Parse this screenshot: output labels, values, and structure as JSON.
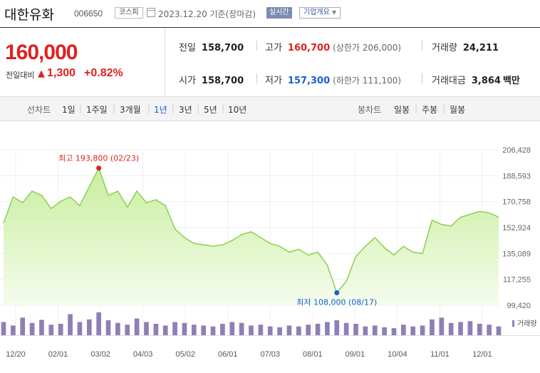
{
  "header": {
    "stock_name": "대한유화",
    "stock_code": "006650",
    "market": "코스피",
    "date": "2023.12.20  기준(장마감)",
    "realtime_label": "실시간",
    "company_button": "기업개요",
    "dropdown_arrow": "▼"
  },
  "quote": {
    "price": "160,000",
    "change_label": "전일대비",
    "change_arrow": "▲",
    "change_value": "1,300",
    "change_pct": "+0.82%",
    "colors": {
      "up": "#e02020",
      "down": "#1a5fd0"
    }
  },
  "stats": {
    "prev_label": "전일",
    "prev_value": "158,700",
    "high_label": "고가",
    "high_value": "160,700",
    "upper_limit": "(상한가 206,000)",
    "volume_label": "거래량",
    "volume_value": "24,211",
    "open_label": "시가",
    "open_value": "158,700",
    "low_label": "저가",
    "low_value": "157,300",
    "lower_limit": "(하한가 111,100)",
    "amount_label": "거래대금",
    "amount_value": "3,864",
    "amount_unit": "백만"
  },
  "period_bar": {
    "line_chart_label": "선차트",
    "line_periods": [
      "1일",
      "1주일",
      "3개월",
      "1년",
      "3년",
      "5년",
      "10년"
    ],
    "active_period": "1년",
    "candle_chart_label": "봉차트",
    "candle_periods": [
      "일봉",
      "주봉",
      "월봉"
    ]
  },
  "chart_data": {
    "type": "area",
    "x_labels": [
      "12/20",
      "02/01",
      "03/02",
      "04/03",
      "05/02",
      "06/01",
      "07/03",
      "08/01",
      "09/01",
      "10/04",
      "11/01",
      "12/01"
    ],
    "y_ticks": [
      "206,428",
      "188,593",
      "170,758",
      "152,924",
      "135,089",
      "117,255",
      "99,420"
    ],
    "ylim": [
      99420,
      206428
    ],
    "high_annotation": "최고 193,800 (02/23)",
    "low_annotation": "최저 108,000 (08/17)",
    "volume_legend": "거래량",
    "x": [
      "12/20",
      "12/27",
      "01/03",
      "01/10",
      "01/17",
      "01/24",
      "01/31",
      "02/07",
      "02/14",
      "02/21",
      "02/23",
      "03/02",
      "03/09",
      "03/16",
      "03/23",
      "03/30",
      "04/06",
      "04/13",
      "04/20",
      "04/27",
      "05/04",
      "05/11",
      "05/18",
      "05/25",
      "06/01",
      "06/08",
      "06/15",
      "06/22",
      "06/29",
      "07/06",
      "07/13",
      "07/20",
      "07/27",
      "08/03",
      "08/10",
      "08/17",
      "08/24",
      "08/31",
      "09/07",
      "09/14",
      "09/21",
      "10/04",
      "10/11",
      "10/18",
      "10/25",
      "11/01",
      "11/08",
      "11/15",
      "11/22",
      "11/29",
      "12/06",
      "12/13",
      "12/20"
    ],
    "values": [
      156000,
      174000,
      170000,
      178000,
      175000,
      166000,
      171000,
      174000,
      168000,
      181000,
      193800,
      175000,
      178000,
      167000,
      178000,
      170000,
      172000,
      168000,
      152000,
      146000,
      142000,
      141000,
      140000,
      141000,
      144000,
      148000,
      150000,
      146000,
      142000,
      140000,
      136000,
      138000,
      134000,
      136000,
      127000,
      108000,
      116000,
      133000,
      140000,
      146000,
      139000,
      134000,
      140000,
      136000,
      135000,
      158000,
      155000,
      154000,
      160000,
      162000,
      164000,
      163000,
      160000
    ],
    "volume": [
      30,
      22,
      40,
      28,
      35,
      24,
      26,
      48,
      30,
      36,
      52,
      34,
      28,
      24,
      38,
      30,
      26,
      22,
      30,
      28,
      24,
      22,
      20,
      26,
      30,
      28,
      22,
      24,
      20,
      18,
      22,
      20,
      24,
      26,
      30,
      34,
      28,
      26,
      20,
      22,
      18,
      16,
      24,
      20,
      22,
      36,
      40,
      28,
      30,
      32,
      26,
      24,
      20
    ],
    "colors": {
      "line": "#8ecf52",
      "fill_top": "#c8ee9c",
      "fill_bottom": "#f5fcee",
      "high": "#e02020",
      "low": "#1a5fd0",
      "volume": "#8e7fb6"
    }
  }
}
